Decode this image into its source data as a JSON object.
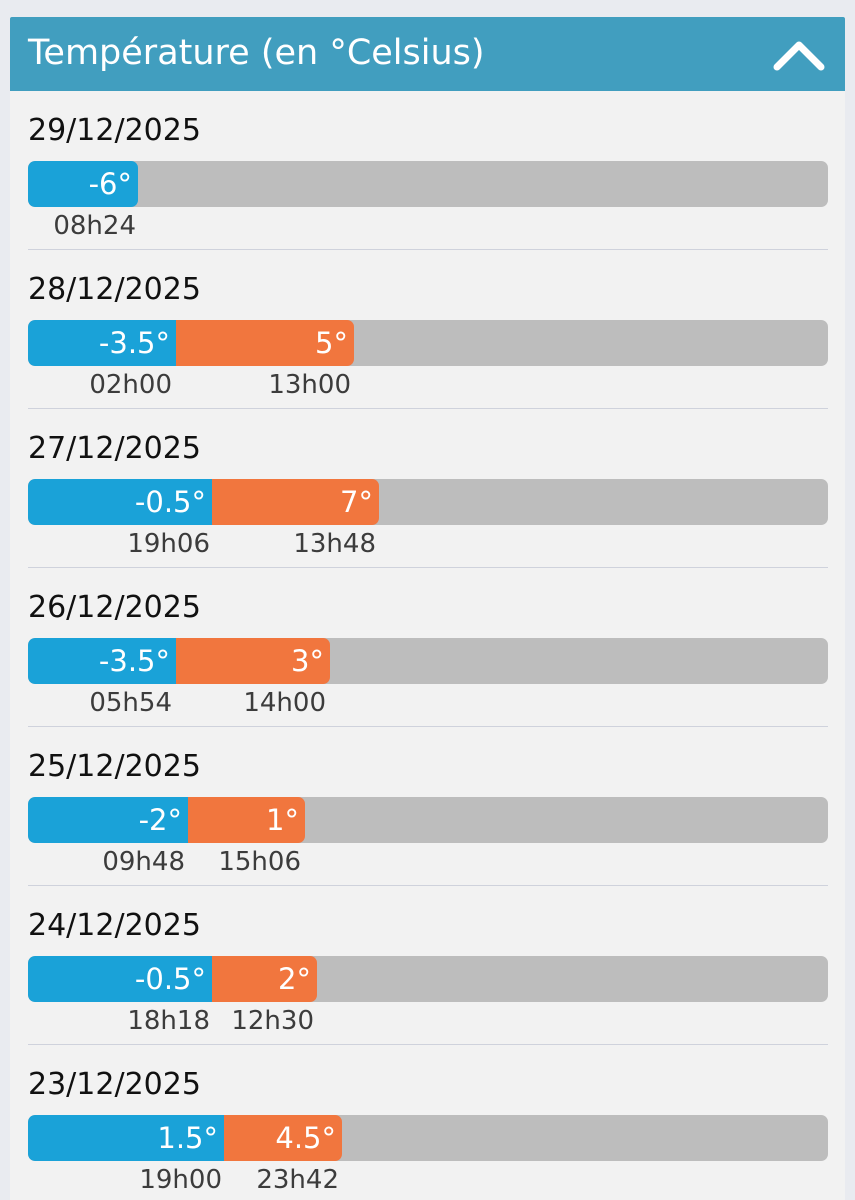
{
  "header": {
    "title": "Température (en °Celsius)",
    "collapse_icon": "chevron-up-icon"
  },
  "colors": {
    "header_bg": "#419ebf",
    "min_bar": "#1aa2d8",
    "max_bar": "#f1763e",
    "track": "#bdbdbd"
  },
  "days": [
    {
      "date": "29/12/2025",
      "min_label": "-6°",
      "min_time": "08h24",
      "max_label": "",
      "max_time": ""
    },
    {
      "date": "28/12/2025",
      "min_label": "-3.5°",
      "min_time": "02h00",
      "max_label": "5°",
      "max_time": "13h00"
    },
    {
      "date": "27/12/2025",
      "min_label": "-0.5°",
      "min_time": "19h06",
      "max_label": "7°",
      "max_time": "13h48"
    },
    {
      "date": "26/12/2025",
      "min_label": "-3.5°",
      "min_time": "05h54",
      "max_label": "3°",
      "max_time": "14h00"
    },
    {
      "date": "25/12/2025",
      "min_label": "-2°",
      "min_time": "09h48",
      "max_label": "1°",
      "max_time": "15h06"
    },
    {
      "date": "24/12/2025",
      "min_label": "-0.5°",
      "min_time": "18h18",
      "max_label": "2°",
      "max_time": "12h30"
    },
    {
      "date": "23/12/2025",
      "min_label": "1.5°",
      "min_time": "19h00",
      "max_label": "4.5°",
      "max_time": "23h42"
    }
  ]
}
